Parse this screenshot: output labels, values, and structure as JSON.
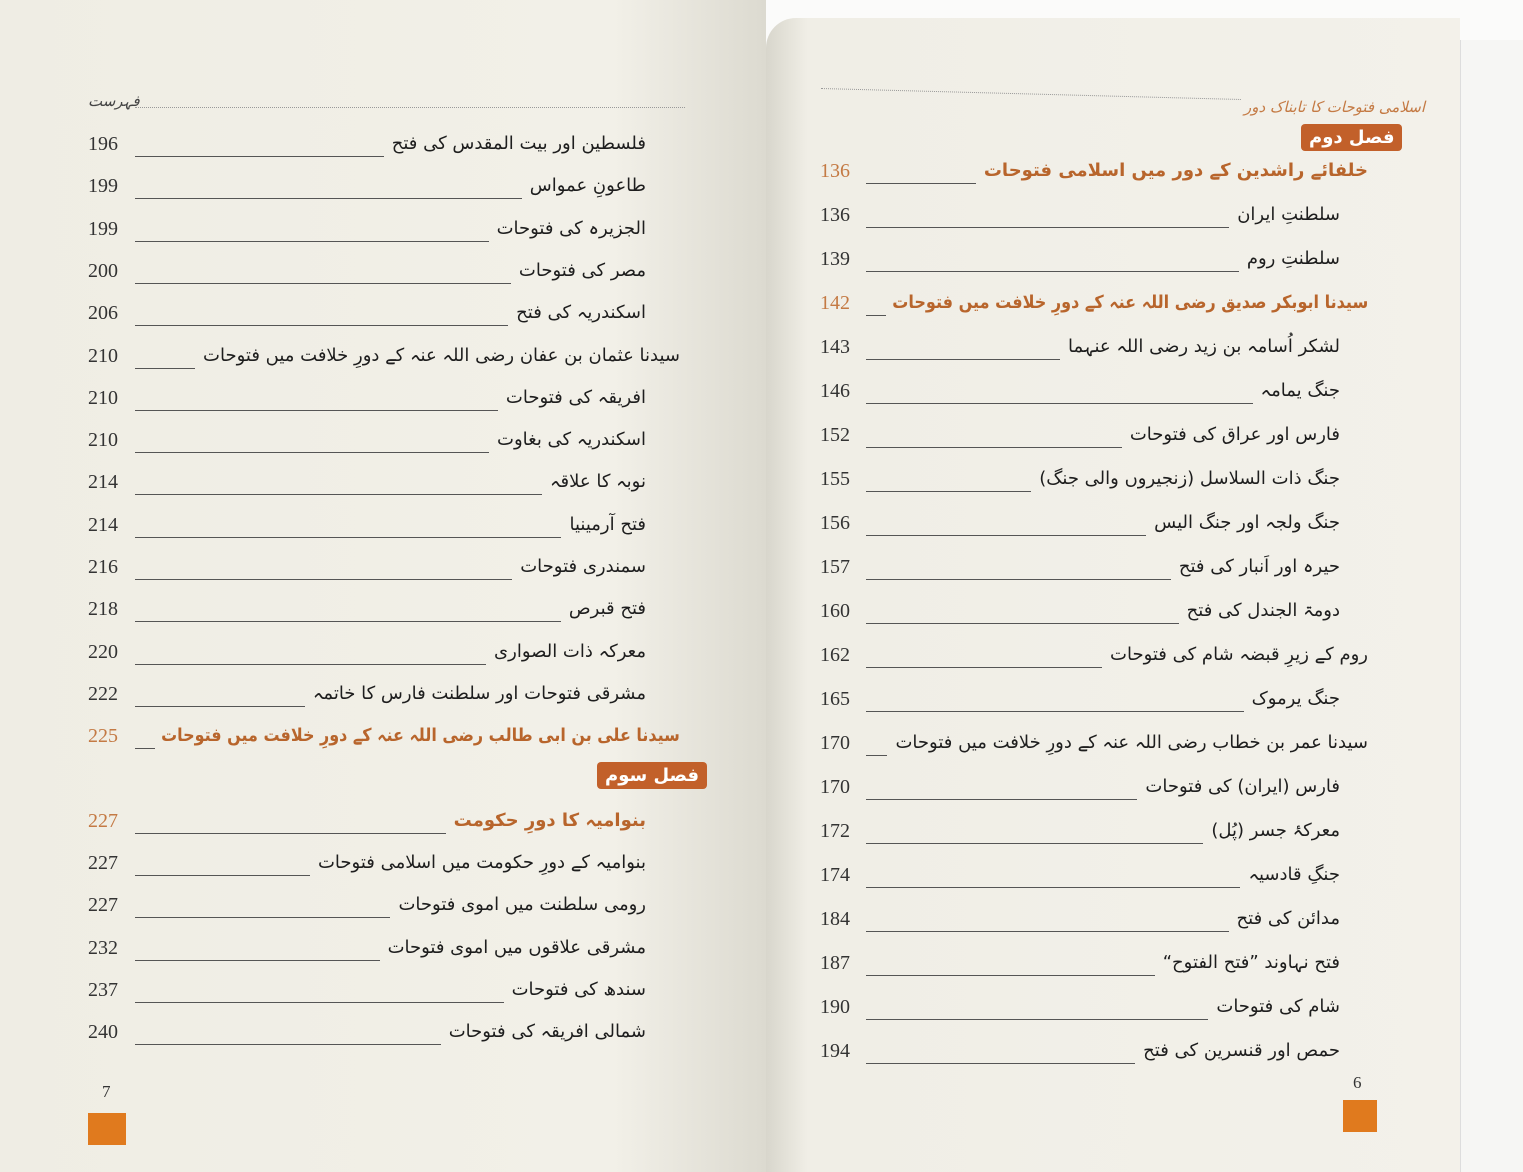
{
  "colors": {
    "accent": "#c2602a",
    "highlight_text": "#b8652c",
    "footer_tab": "#e07a1e"
  },
  "left": {
    "running_head": "فہرست",
    "folio": "7",
    "items": [
      {
        "type": "entry",
        "page": "196",
        "title": "فلسطین اور بیت المقدس کی فتح"
      },
      {
        "type": "entry",
        "page": "199",
        "title": "طاعونِ عمواس"
      },
      {
        "type": "entry",
        "page": "199",
        "title": "الجزیرہ کی فتوحات"
      },
      {
        "type": "entry",
        "page": "200",
        "title": "مصر کی فتوحات"
      },
      {
        "type": "entry",
        "page": "206",
        "title": "اسکندریہ کی فتح"
      },
      {
        "type": "entry",
        "page": "210",
        "title": "سیدنا عثمان بن عفان رضی اللہ عنہ کے دورِ خلافت میں فتوحات",
        "level": "major"
      },
      {
        "type": "entry",
        "page": "210",
        "title": "افریقہ کی فتوحات"
      },
      {
        "type": "entry",
        "page": "210",
        "title": "اسکندریہ کی بغاوت"
      },
      {
        "type": "entry",
        "page": "214",
        "title": "نوبہ کا علاقہ"
      },
      {
        "type": "entry",
        "page": "214",
        "title": "فتح آرمینیا"
      },
      {
        "type": "entry",
        "page": "216",
        "title": "سمندری فتوحات"
      },
      {
        "type": "entry",
        "page": "218",
        "title": "فتح قبرص"
      },
      {
        "type": "entry",
        "page": "220",
        "title": "معرکہ ذات الصواری"
      },
      {
        "type": "entry",
        "page": "222",
        "title": "مشرقی فتوحات اور سلطنت فارس کا خاتمہ"
      },
      {
        "type": "entry",
        "page": "225",
        "title": "سیدنا علی بن ابی طالب رضی اللہ عنہ کے دورِ خلافت میں فتوحات",
        "level": "major",
        "highlight": true
      },
      {
        "type": "section",
        "label": "فصل سوم"
      },
      {
        "type": "entry",
        "page": "227",
        "title": "بنوامیہ کا دورِ حکومت",
        "highlight": true
      },
      {
        "type": "entry",
        "page": "227",
        "title": "بنوامیہ کے دورِ حکومت میں اسلامی فتوحات"
      },
      {
        "type": "entry",
        "page": "227",
        "title": "رومی سلطنت میں اموی فتوحات"
      },
      {
        "type": "entry",
        "page": "232",
        "title": "مشرقی علاقوں میں اموی فتوحات"
      },
      {
        "type": "entry",
        "page": "237",
        "title": "سندھ کی فتوحات"
      },
      {
        "type": "entry",
        "page": "240",
        "title": "شمالی افریقہ کی فتوحات"
      }
    ]
  },
  "right": {
    "running_head": "اسلامی فتوحات کا تابناک دور",
    "folio": "6",
    "section_badge": "فصل دوم",
    "items": [
      {
        "type": "entry",
        "page": "136",
        "title": "خلفائے راشدین کے دور میں اسلامی فتوحات",
        "level": "major",
        "highlight": true
      },
      {
        "type": "entry",
        "page": "136",
        "title": "سلطنتِ ایران"
      },
      {
        "type": "entry",
        "page": "139",
        "title": "سلطنتِ روم"
      },
      {
        "type": "entry",
        "page": "142",
        "title": "سیدنا ابوبکر صدیق رضی اللہ عنہ کے دورِ خلافت میں فتوحات",
        "level": "major",
        "highlight": true
      },
      {
        "type": "entry",
        "page": "143",
        "title": "لشکر اُسامہ بن زید رضی اللہ عنہما"
      },
      {
        "type": "entry",
        "page": "146",
        "title": "جنگ یمامہ"
      },
      {
        "type": "entry",
        "page": "152",
        "title": "فارس اور عراق کی فتوحات"
      },
      {
        "type": "entry",
        "page": "155",
        "title": "جنگ ذات السلاسل (زنجیروں والی جنگ)"
      },
      {
        "type": "entry",
        "page": "156",
        "title": "جنگ ولجہ اور جنگ الیس"
      },
      {
        "type": "entry",
        "page": "157",
        "title": "حیرہ اور اَنبار کی فتح"
      },
      {
        "type": "entry",
        "page": "160",
        "title": "دومۃ الجندل کی فتح"
      },
      {
        "type": "entry",
        "page": "162",
        "title": "روم کے زیرِ قبضہ شام کی فتوحات",
        "level": "major"
      },
      {
        "type": "entry",
        "page": "165",
        "title": "جنگ یرموک"
      },
      {
        "type": "entry",
        "page": "170",
        "title": "سیدنا عمر بن خطاب رضی اللہ عنہ کے دورِ خلافت میں فتوحات",
        "level": "major"
      },
      {
        "type": "entry",
        "page": "170",
        "title": "فارس (ایران) کی فتوحات"
      },
      {
        "type": "entry",
        "page": "172",
        "title": "معرکۂ جسر (پُل)"
      },
      {
        "type": "entry",
        "page": "174",
        "title": "جنگِ قادسیہ"
      },
      {
        "type": "entry",
        "page": "184",
        "title": "مدائن کی فتح"
      },
      {
        "type": "entry",
        "page": "187",
        "title": "فتح نہاوند ”فتح الفتوح“"
      },
      {
        "type": "entry",
        "page": "190",
        "title": "شام کی فتوحات"
      },
      {
        "type": "entry",
        "page": "194",
        "title": "حمص اور قنسرین کی فتح"
      }
    ]
  }
}
